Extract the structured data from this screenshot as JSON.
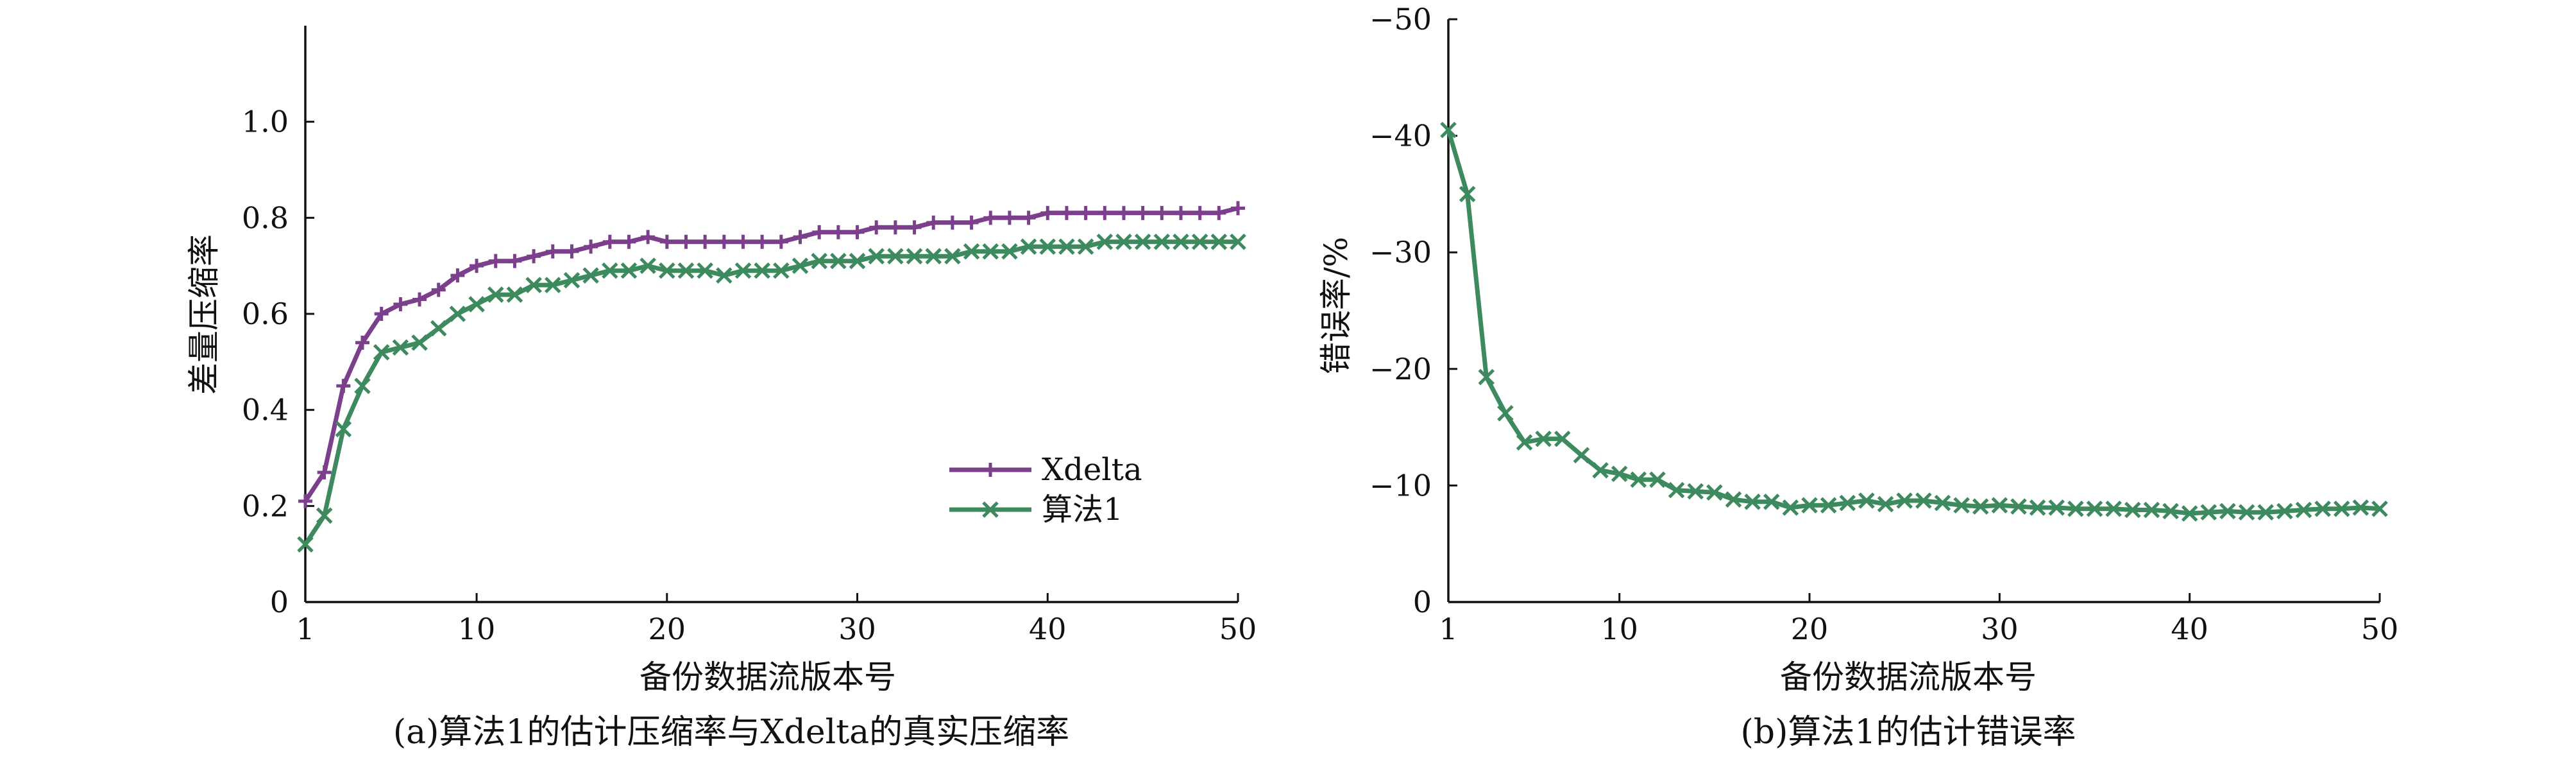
{
  "figure": {
    "captions": [
      "(a)算法1的估计压缩率与Xdelta的真实压缩率",
      "(b)算法1的估计错误率"
    ]
  },
  "chart_data": [
    {
      "type": "line",
      "title": "(a)算法1的估计压缩率与Xdelta的真实压缩率",
      "xlabel": "备份数据流版本号",
      "ylabel": "差量压缩率",
      "xlim": [
        1,
        50
      ],
      "ylim": [
        0,
        1.2
      ],
      "xticks": [
        "1",
        "10",
        "20",
        "30",
        "40",
        "50"
      ],
      "yticks": [
        "0",
        "0.2",
        "0.4",
        "0.6",
        "0.8",
        "1.0"
      ],
      "grid": false,
      "legend": "bottom-right",
      "x": [
        1,
        2,
        3,
        4,
        5,
        6,
        7,
        8,
        9,
        10,
        11,
        12,
        13,
        14,
        15,
        16,
        17,
        18,
        19,
        20,
        21,
        22,
        23,
        24,
        25,
        26,
        27,
        28,
        29,
        30,
        31,
        32,
        33,
        34,
        35,
        36,
        37,
        38,
        39,
        40,
        41,
        42,
        43,
        44,
        45,
        46,
        47,
        48,
        49,
        50
      ],
      "series": [
        {
          "name": "Xdelta",
          "color": "#7b3f8c",
          "marker": "plus",
          "values": [
            0.21,
            0.27,
            0.45,
            0.54,
            0.6,
            0.62,
            0.63,
            0.65,
            0.68,
            0.7,
            0.71,
            0.71,
            0.72,
            0.73,
            0.73,
            0.74,
            0.75,
            0.75,
            0.76,
            0.75,
            0.75,
            0.75,
            0.75,
            0.75,
            0.75,
            0.75,
            0.76,
            0.77,
            0.77,
            0.77,
            0.78,
            0.78,
            0.78,
            0.79,
            0.79,
            0.79,
            0.8,
            0.8,
            0.8,
            0.81,
            0.81,
            0.81,
            0.81,
            0.81,
            0.81,
            0.81,
            0.81,
            0.81,
            0.81,
            0.82
          ]
        },
        {
          "name": "算法1",
          "color": "#3d8a5e",
          "marker": "x",
          "values": [
            0.12,
            0.18,
            0.36,
            0.45,
            0.52,
            0.53,
            0.54,
            0.57,
            0.6,
            0.62,
            0.64,
            0.64,
            0.66,
            0.66,
            0.67,
            0.68,
            0.69,
            0.69,
            0.7,
            0.69,
            0.69,
            0.69,
            0.68,
            0.69,
            0.69,
            0.69,
            0.7,
            0.71,
            0.71,
            0.71,
            0.72,
            0.72,
            0.72,
            0.72,
            0.72,
            0.73,
            0.73,
            0.73,
            0.74,
            0.74,
            0.74,
            0.74,
            0.75,
            0.75,
            0.75,
            0.75,
            0.75,
            0.75,
            0.75,
            0.75
          ]
        }
      ]
    },
    {
      "type": "line",
      "title": "(b)算法1的估计错误率",
      "xlabel": "备份数据流版本号",
      "ylabel": "错误率/%",
      "xlim": [
        1,
        50
      ],
      "ylim": [
        0,
        -50
      ],
      "y_inverted": true,
      "xticks": [
        "1",
        "10",
        "20",
        "30",
        "40",
        "50"
      ],
      "yticks": [
        "0",
        "−10",
        "−20",
        "−30",
        "−40",
        "−50"
      ],
      "grid": false,
      "x": [
        1,
        2,
        3,
        4,
        5,
        6,
        7,
        8,
        9,
        10,
        11,
        12,
        13,
        14,
        15,
        16,
        17,
        18,
        19,
        20,
        21,
        22,
        23,
        24,
        25,
        26,
        27,
        28,
        29,
        30,
        31,
        32,
        33,
        34,
        35,
        36,
        37,
        38,
        39,
        40,
        41,
        42,
        43,
        44,
        45,
        46,
        47,
        48,
        49,
        50
      ],
      "series": [
        {
          "color": "#3d8a5e",
          "marker": "x",
          "values": [
            -40.5,
            -35.0,
            -19.3,
            -16.2,
            -13.7,
            -14.0,
            -14.0,
            -12.6,
            -11.3,
            -11.0,
            -10.5,
            -10.5,
            -9.6,
            -9.5,
            -9.4,
            -8.8,
            -8.6,
            -8.6,
            -8.1,
            -8.3,
            -8.3,
            -8.5,
            -8.7,
            -8.4,
            -8.7,
            -8.7,
            -8.5,
            -8.3,
            -8.2,
            -8.3,
            -8.2,
            -8.1,
            -8.1,
            -8.0,
            -8.0,
            -8.0,
            -7.9,
            -7.9,
            -7.8,
            -7.6,
            -7.7,
            -7.8,
            -7.7,
            -7.7,
            -7.8,
            -7.9,
            -8.0,
            -8.0,
            -8.1,
            -8.0
          ]
        }
      ]
    }
  ]
}
